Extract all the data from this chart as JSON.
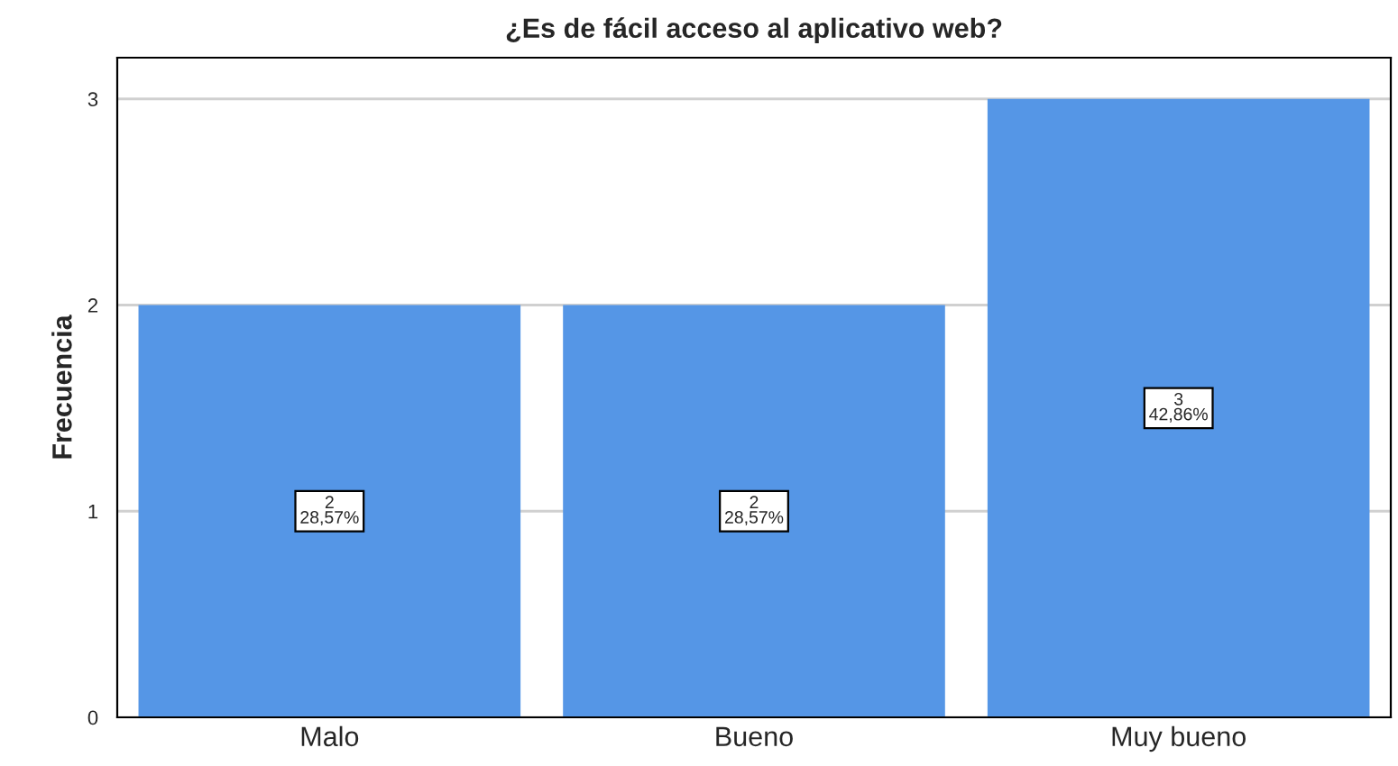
{
  "chart_data": {
    "type": "bar",
    "title": "¿Es de fácil acceso al aplicativo web?",
    "ylabel": "Frecuencia",
    "categories": [
      "Malo",
      "Bueno",
      "Muy bueno"
    ],
    "values": [
      2,
      2,
      3
    ],
    "color": "#5596e6",
    "value_labels": [
      "2\n28,57%",
      "2\n28,57%",
      "3\n42,86%"
    ],
    "ylim": [
      0,
      3.2
    ],
    "yticks": [
      0,
      1,
      2,
      3
    ],
    "grid": "y",
    "legend": false
  }
}
